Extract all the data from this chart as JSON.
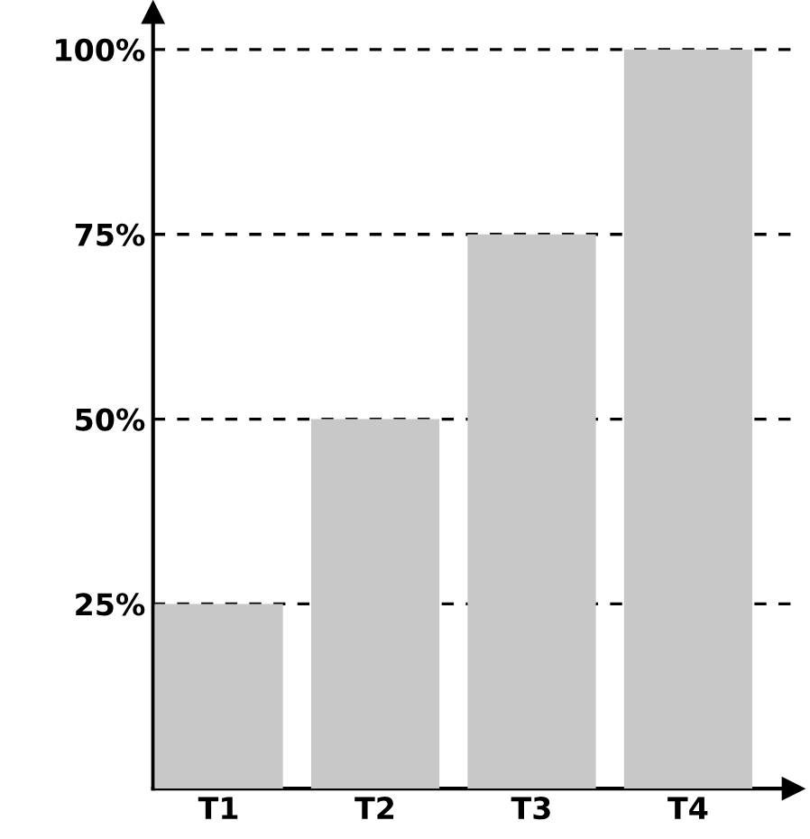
{
  "chart_data": {
    "type": "bar",
    "categories": [
      "T1",
      "T2",
      "T3",
      "T4"
    ],
    "values": [
      25,
      50,
      75,
      100
    ],
    "color": "#c8c8c8",
    "ylim": [
      0,
      105
    ],
    "yticks": [
      {
        "value": 25,
        "label": "25%"
      },
      {
        "value": 50,
        "label": "50%"
      },
      {
        "value": 75,
        "label": "75%"
      },
      {
        "value": 100,
        "label": "100%"
      }
    ],
    "grid": "y",
    "line_style": "dashed"
  }
}
